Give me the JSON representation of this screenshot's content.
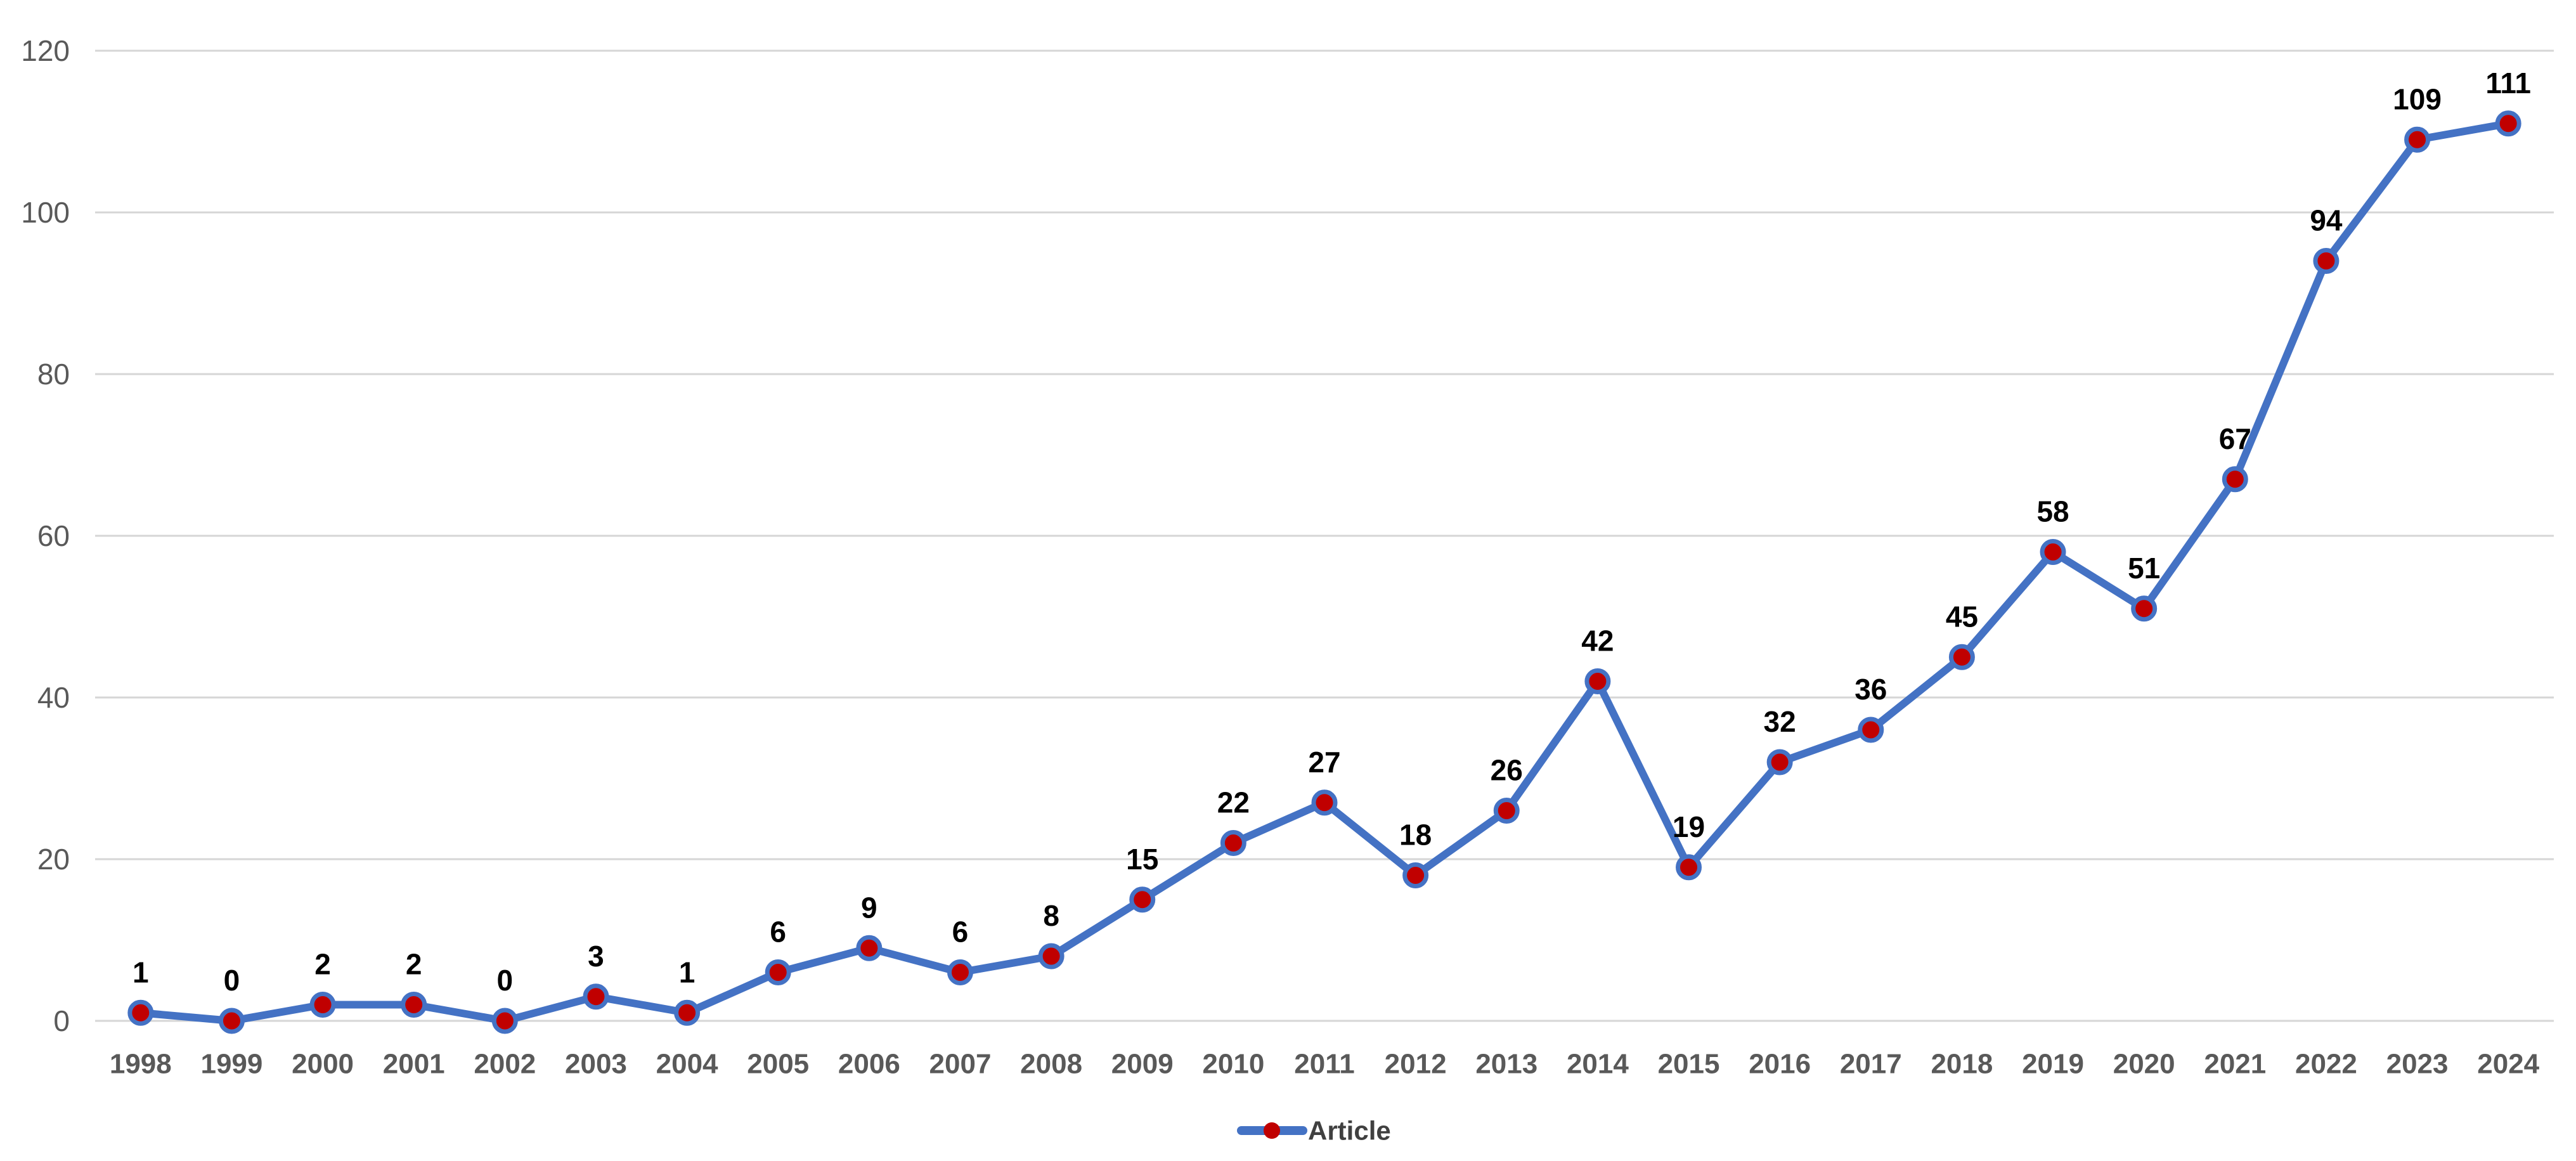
{
  "chart_data": {
    "type": "line",
    "title": "",
    "categories": [
      "1998",
      "1999",
      "2000",
      "2001",
      "2002",
      "2003",
      "2004",
      "2005",
      "2006",
      "2007",
      "2008",
      "2009",
      "2010",
      "2011",
      "2012",
      "2013",
      "2014",
      "2015",
      "2016",
      "2017",
      "2018",
      "2019",
      "2020",
      "2021",
      "2022",
      "2023",
      "2024"
    ],
    "series": [
      {
        "name": "Article",
        "values": [
          1,
          0,
          2,
          2,
          0,
          3,
          1,
          6,
          9,
          6,
          8,
          15,
          22,
          27,
          18,
          26,
          42,
          19,
          32,
          36,
          45,
          58,
          51,
          67,
          94,
          109,
          111
        ]
      }
    ],
    "ylabel": "",
    "xlabel": "",
    "ylim": [
      0,
      120
    ],
    "ytick_step": 20,
    "ytick_labels": [
      "0",
      "20",
      "40",
      "60",
      "80",
      "100",
      "120"
    ],
    "grid": "horizontal",
    "data_labels": true,
    "legend_position": "bottom"
  },
  "legend": {
    "label": "Article"
  },
  "colors": {
    "line": "#4472C4",
    "marker_fill": "#C00000",
    "marker_stroke": "#4472C4",
    "gridline": "#D6D6D6",
    "axis_text": "#595959",
    "data_label_text": "#000000",
    "legend_text": "#404040",
    "background": "#FFFFFF"
  }
}
